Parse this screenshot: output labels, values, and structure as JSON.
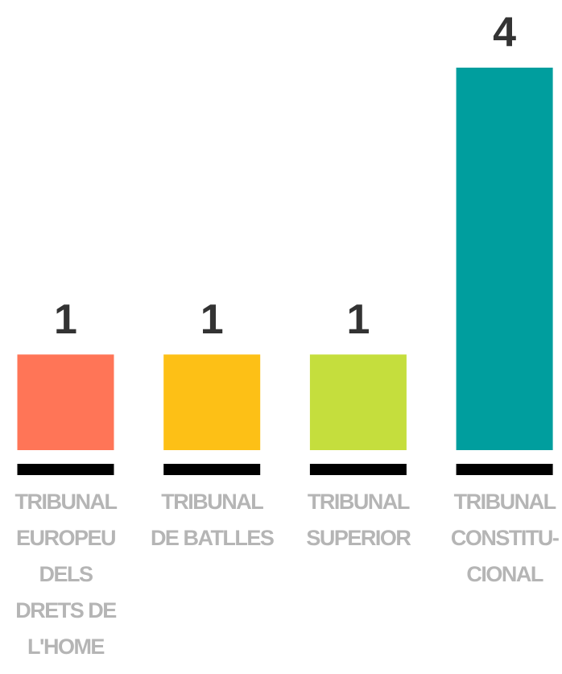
{
  "chart_data": {
    "type": "bar",
    "categories": [
      [
        "TRIBUNAL",
        "EUROPEU",
        "DELS",
        "DRETS DE",
        "L'HOME"
      ],
      [
        "TRIBUNAL",
        "DE BATLLES"
      ],
      [
        "TRIBUNAL",
        "SUPERIOR"
      ],
      [
        "TRIBUNAL",
        "CONSTITU-",
        "CIONAL"
      ]
    ],
    "values": [
      1,
      1,
      1,
      4
    ],
    "colors": [
      "#ff7557",
      "#fdc016",
      "#c5de3d",
      "#009e9e"
    ],
    "ylim": [
      0,
      4
    ]
  }
}
